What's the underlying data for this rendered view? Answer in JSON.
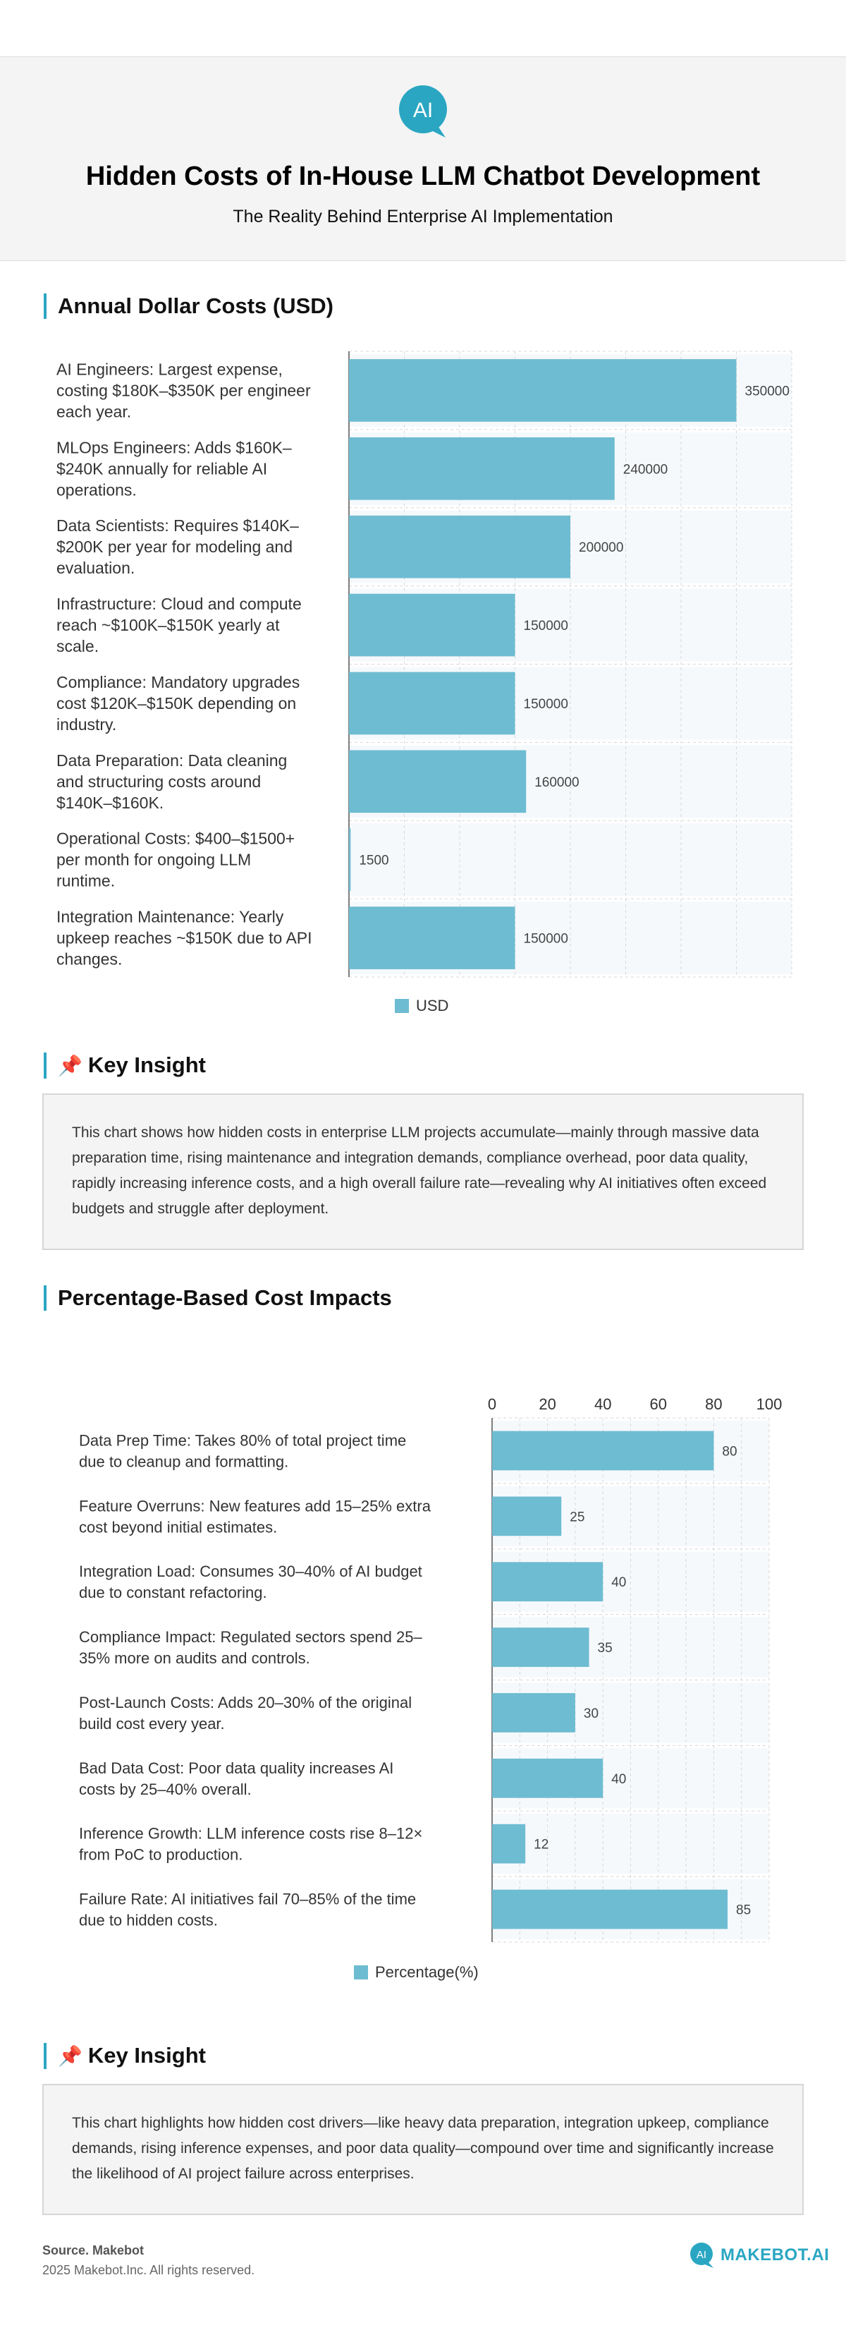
{
  "header": {
    "logo_text": "AI",
    "title": "Hidden Costs of In-House LLM Chatbot Development",
    "subtitle": "The Reality Behind Enterprise AI Implementation"
  },
  "section1": {
    "title": "Annual Dollar Costs (USD)"
  },
  "insight1": {
    "title": "Key Insight",
    "text": "This chart shows how hidden costs in enterprise LLM projects accumulate—mainly through massive data preparation time, rising maintenance and integration demands, compliance overhead, poor data quality, rapidly increasing inference costs, and a high overall failure rate—revealing why AI initiatives often exceed budgets and struggle after deployment."
  },
  "section2": {
    "title": "Percentage-Based Cost Impacts"
  },
  "insight2": {
    "title": "Key Insight",
    "text": "This chart highlights how hidden cost drivers—like heavy data preparation, integration upkeep, compliance demands, rising inference expenses, and poor data quality—compound over time and significantly increase the likelihood of AI project failure across enterprises."
  },
  "footer": {
    "source": "Source. Makebot",
    "copyright": "2025 Makebot.Inc. All rights reserved.",
    "brand": "MAKEBOT.AI"
  },
  "colors": {
    "bar": "#6ebcd2",
    "accent": "#2aa6c2",
    "grid_band": "#f5f9fc"
  },
  "chart_data": [
    {
      "type": "bar",
      "orientation": "horizontal",
      "title": "Annual Dollar Costs (USD)",
      "categories": [
        [
          "AI Engineers: Largest expense,",
          "costing $180K–$350K per engineer",
          "each year."
        ],
        [
          "MLOps Engineers: Adds $160K–",
          "$240K annually for reliable AI",
          "operations."
        ],
        [
          "Data Scientists: Requires $140K–",
          "$200K per year for modeling and",
          "evaluation."
        ],
        [
          "Infrastructure: Cloud and compute",
          "reach ~$100K–$150K yearly at",
          "scale."
        ],
        [
          "Compliance: Mandatory upgrades",
          "cost $120K–$150K depending on",
          "industry."
        ],
        [
          "Data Preparation: Data cleaning",
          "and structuring costs around",
          "$140K–$160K."
        ],
        [
          "Operational Costs: $400–$1500+",
          "per month for ongoing LLM",
          "runtime."
        ],
        [
          "Integration Maintenance: Yearly",
          "upkeep reaches ~$150K due to API",
          "changes."
        ]
      ],
      "series": [
        {
          "name": "USD",
          "values": [
            350000,
            240000,
            200000,
            150000,
            150000,
            160000,
            1500,
            150000
          ]
        }
      ],
      "xlim": [
        0,
        400000
      ],
      "legend": "bottom-center",
      "grid": true
    },
    {
      "type": "bar",
      "orientation": "horizontal",
      "title": "Percentage-Based Cost Impacts",
      "categories": [
        [
          "Data Prep Time: Takes 80% of total project time",
          "due to cleanup and formatting."
        ],
        [
          "Feature Overruns: New features add 15–25% extra",
          "cost beyond initial estimates."
        ],
        [
          "Integration Load: Consumes 30–40% of AI budget",
          "due to constant refactoring."
        ],
        [
          "Compliance Impact: Regulated sectors spend 25–",
          "35% more on audits and controls."
        ],
        [
          "Post-Launch Costs: Adds 20–30% of the original",
          "build cost every year."
        ],
        [
          "Bad Data Cost: Poor data quality increases AI",
          "costs by 25–40% overall."
        ],
        [
          "Inference Growth: LLM inference costs rise 8–12×",
          "from PoC to production."
        ],
        [
          "Failure Rate: AI initiatives fail 70–85% of the time",
          "due to hidden costs."
        ]
      ],
      "series": [
        {
          "name": "Percentage(%)",
          "values": [
            80,
            25,
            40,
            35,
            30,
            40,
            12,
            85
          ]
        }
      ],
      "xlim": [
        0,
        100
      ],
      "xticks": [
        "0",
        "20",
        "40",
        "60",
        "80",
        "100"
      ],
      "legend": "bottom-center",
      "grid": true
    }
  ]
}
